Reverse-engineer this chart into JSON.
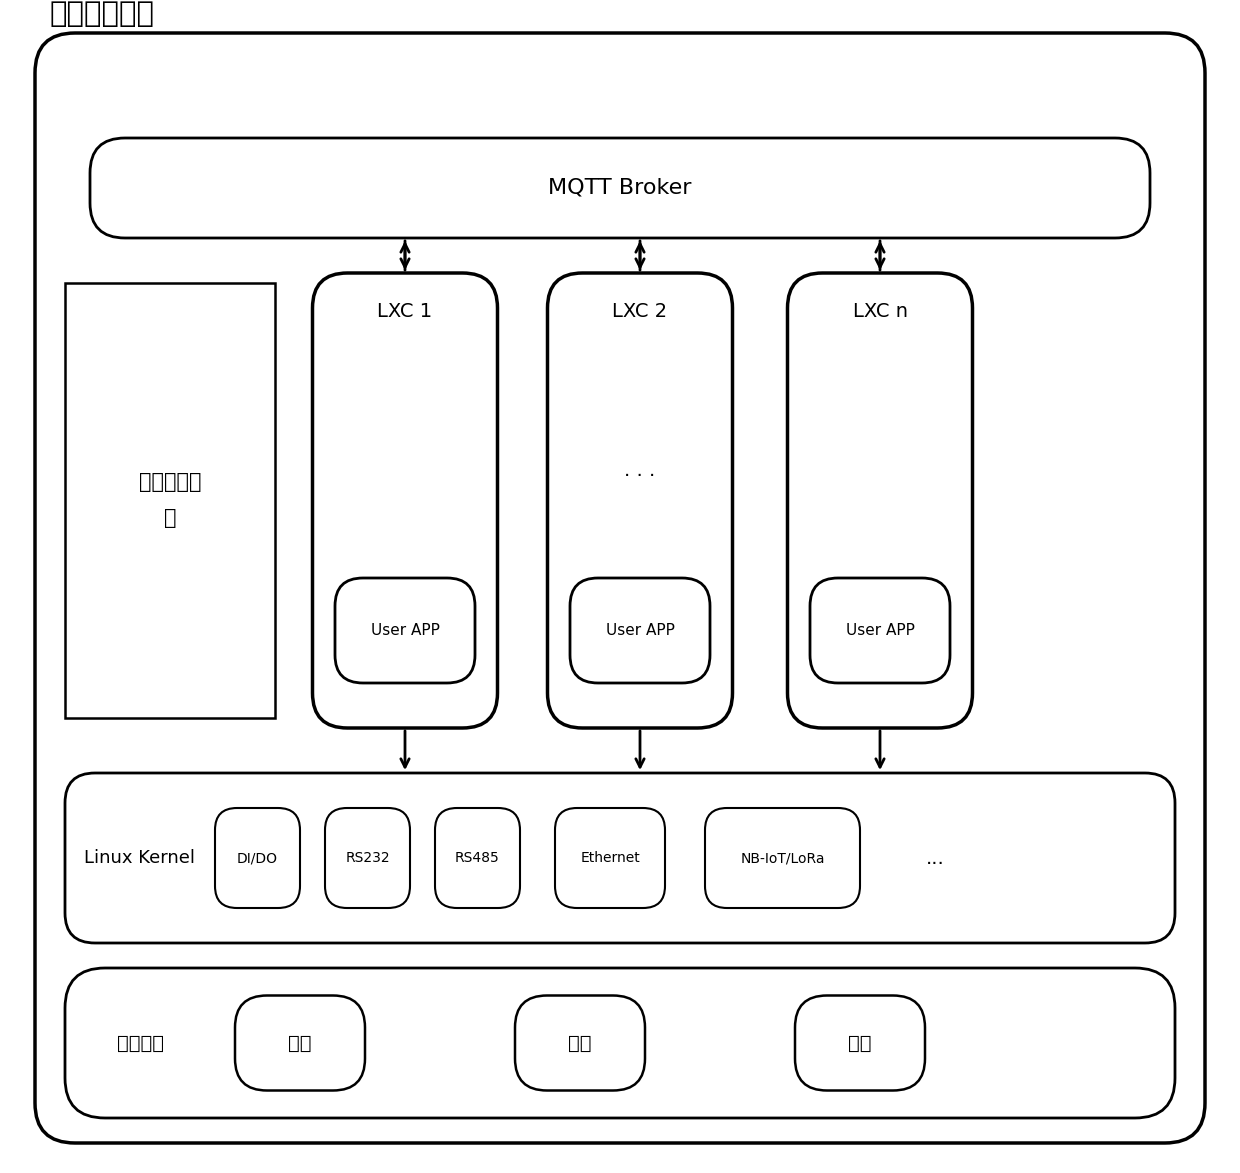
{
  "title": "边缘计算网关",
  "bg_color": "#ffffff",
  "border_color": "#000000",
  "box_color": "#ffffff",
  "text_color": "#000000",
  "mqtt_label": "MQTT Broker",
  "container_mgr_label": "容器管理进\n程",
  "lxc_labels": [
    "LXC 1",
    "LXC 2",
    "LXC n"
  ],
  "user_app_label": "User APP",
  "linux_kernel_label": "Linux Kernel",
  "kernel_modules": [
    "DI/DO",
    "RS232",
    "RS485",
    "Ethernet",
    "NB-IoT/LoRa",
    "..."
  ],
  "hardware_label": "底层硬件",
  "hardware_modules": [
    "存储",
    "计算",
    "通信"
  ],
  "dots_label": ". . .",
  "fig_width": 12.4,
  "fig_height": 11.73,
  "dpi": 100
}
